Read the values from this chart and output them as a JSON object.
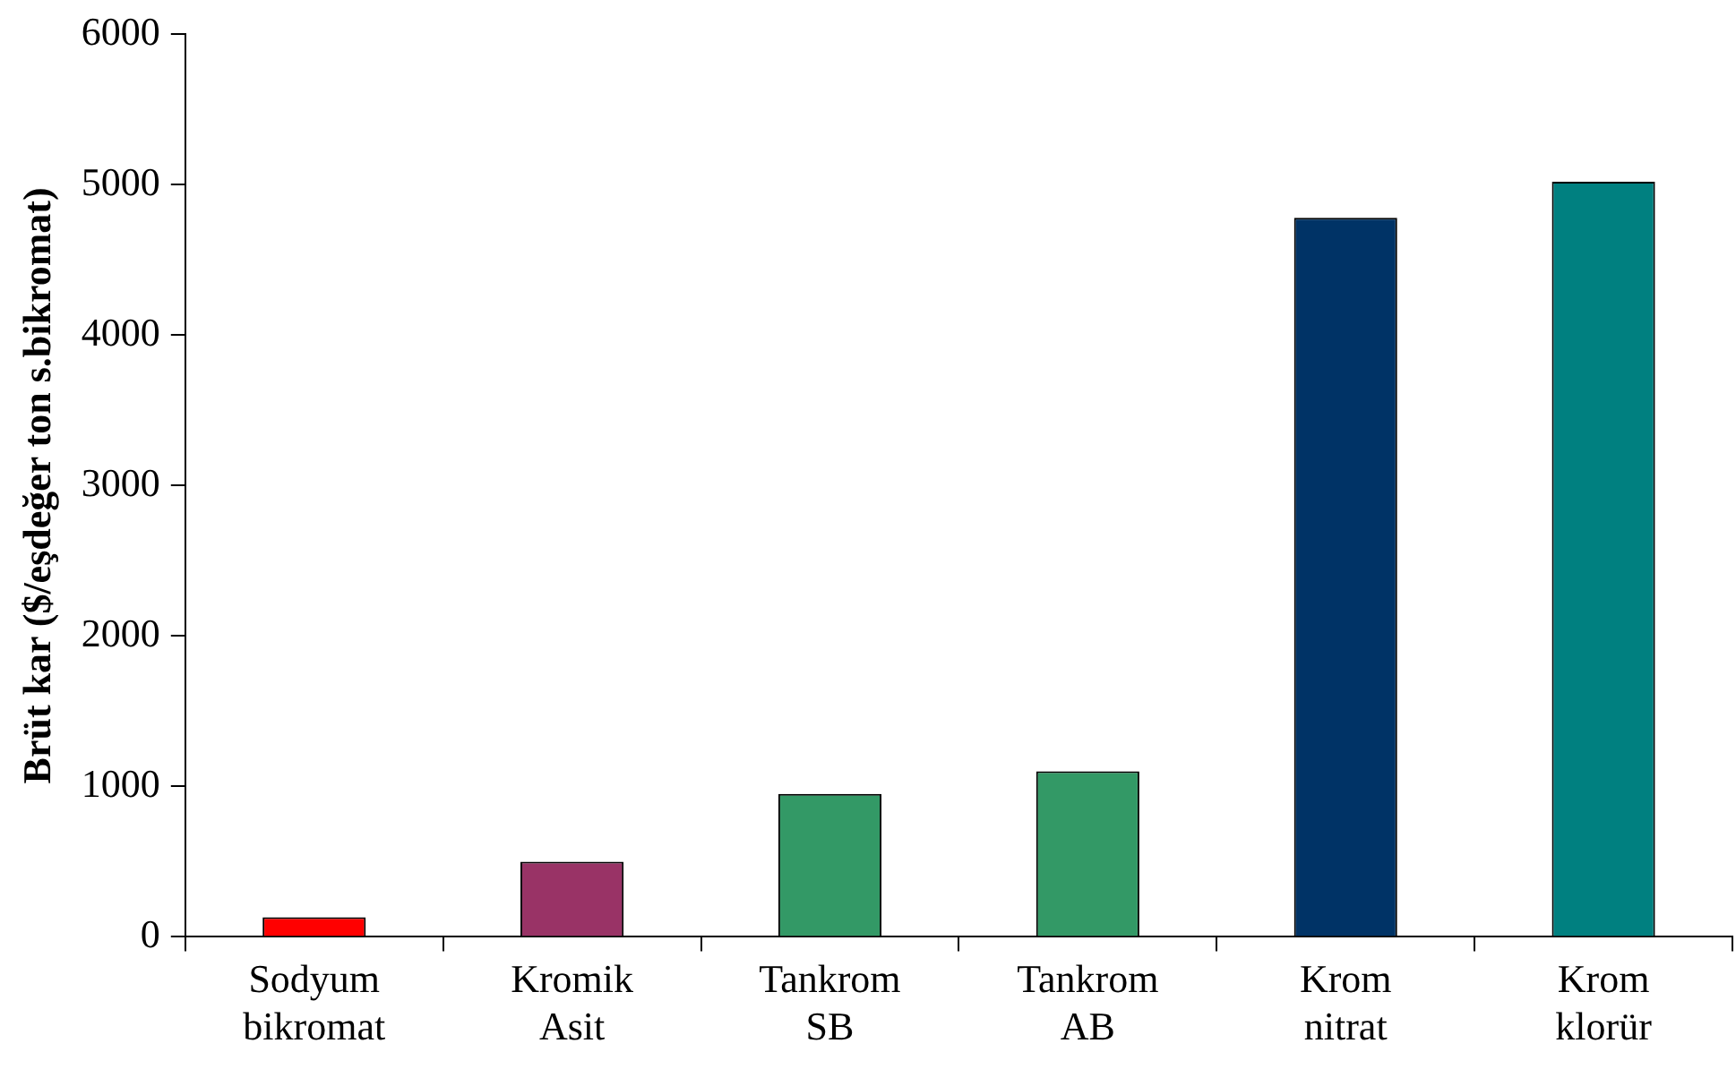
{
  "chart_data": {
    "type": "bar",
    "ylabel": "Brüt kar ($/eşdeğer ton s.bikromat)",
    "categories": [
      "Sodyum bikromat",
      "Kromik Asit",
      "Tankrom SB",
      "Tankrom AB",
      "Krom nitrat",
      "Krom klorür"
    ],
    "values": [
      130,
      500,
      950,
      1100,
      4780,
      5020
    ],
    "colors": [
      "#ff0000",
      "#993366",
      "#339966",
      "#339966",
      "#003366",
      "#008080"
    ],
    "ylim": [
      0,
      6000
    ],
    "yticks": [
      0,
      1000,
      2000,
      3000,
      4000,
      5000,
      6000
    ],
    "grid": false,
    "legend": false
  }
}
